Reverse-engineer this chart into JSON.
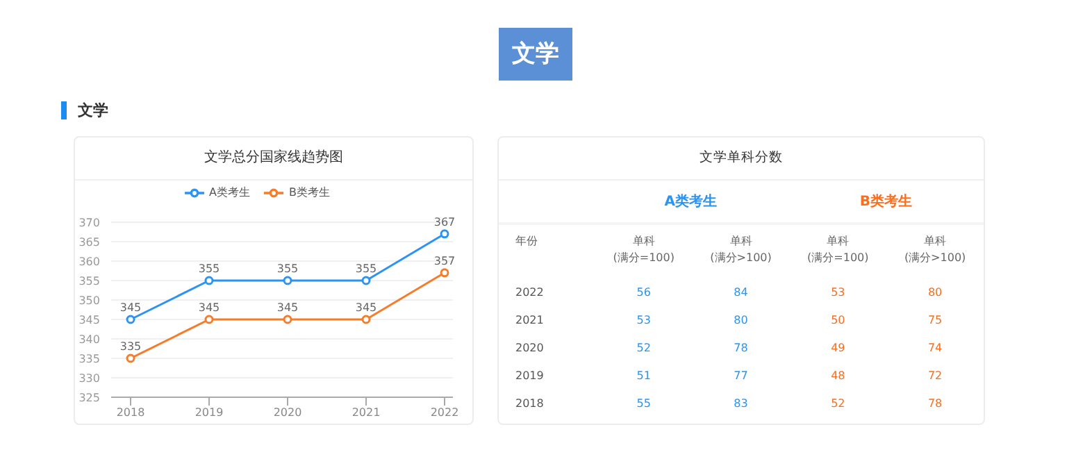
{
  "chart_data": [
    {
      "type": "line",
      "title": "文学总分国家线趋势图",
      "annotations": [
        "文学",
        "文学"
      ],
      "categories": [
        "2018",
        "2019",
        "2020",
        "2021",
        "2022"
      ],
      "series": [
        {
          "name": "A类考生",
          "color": "#2b93f2",
          "values": [
            345,
            355,
            355,
            355,
            367
          ]
        },
        {
          "name": "B类考生",
          "color": "#f67c2a",
          "values": [
            335,
            345,
            345,
            345,
            357
          ]
        }
      ],
      "ylim": [
        325,
        370
      ],
      "yticks": [
        325,
        330,
        335,
        340,
        345,
        350,
        355,
        360,
        365,
        370
      ],
      "grid": "y",
      "legend": "top",
      "marker": "circle",
      "data_labels": true
    },
    {
      "type": "heatmap",
      "title": "文学单科分数",
      "ylabel": "年份",
      "annotations": [
        "A类考生",
        "B类考生"
      ],
      "categories": [
        "单科 (满分=100)",
        "单科 (满分>100)",
        "单科 (满分=100)",
        "单科 (满分>100)"
      ],
      "y_categories": [
        "2022",
        "2021",
        "2020",
        "2019",
        "2018"
      ],
      "colors": [
        "#2b93f2",
        "#2b93f2",
        "#fa6e1e",
        "#fa6e1e"
      ],
      "cells": [
        [
          56,
          84,
          53,
          80
        ],
        [
          53,
          80,
          50,
          75
        ],
        [
          52,
          78,
          49,
          74
        ],
        [
          51,
          77,
          48,
          72
        ],
        [
          55,
          83,
          52,
          78
        ]
      ],
      "data_labels": true
    }
  ]
}
